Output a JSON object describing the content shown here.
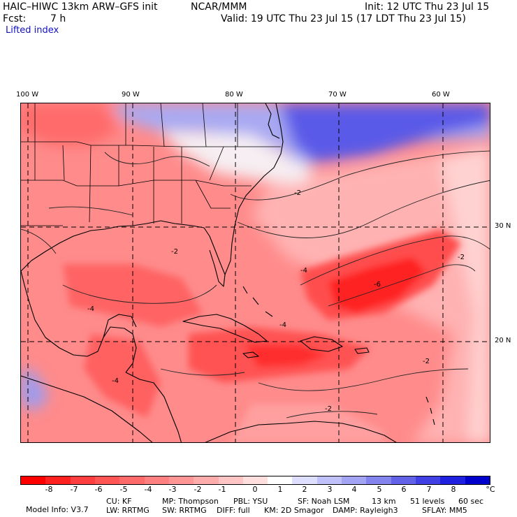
{
  "header": {
    "title_left": "HAIC–HIWC 13km ARW–GFS init",
    "title_center": "NCAR/MMM",
    "fcst_label": "Fcst:",
    "fcst_value": "7 h",
    "init": "Init: 12 UTC Thu 23 Jul 15",
    "valid": "Valid: 19 UTC Thu 23 Jul 15 (17 LDT Thu 23 Jul 15)",
    "field_name": "Lifted index"
  },
  "map": {
    "lon_labels": [
      "100 W",
      "90 W",
      "80 W",
      "70 W",
      "60 W"
    ],
    "lat_labels": [
      "30 N",
      "20 N"
    ],
    "contour_labels": [
      "-2",
      "-2",
      "-4",
      "-4",
      "-4",
      "-6",
      "-2",
      "-2",
      "-4",
      "-2"
    ]
  },
  "colorbar": {
    "colors": [
      "#ff0000",
      "#ff2020",
      "#ff3f3f",
      "#ff5555",
      "#ff6a6a",
      "#ff8080",
      "#ff9696",
      "#ffacac",
      "#ffc4c4",
      "#ffdede",
      "#ffffff",
      "#dedefe",
      "#c0c0fa",
      "#a4a4f4",
      "#8484ee",
      "#6262e8",
      "#4040e4",
      "#2020e0",
      "#0000cc"
    ],
    "ticks": [
      "-8",
      "-7",
      "-6",
      "-5",
      "-4",
      "-3",
      "-2",
      "-1",
      "0",
      "1",
      "2",
      "3",
      "4",
      "5",
      "6",
      "7",
      "8"
    ],
    "unit": "°C"
  },
  "model_info": {
    "line1": [
      "Model Info: V3.7",
      "CU: KF",
      "MP: Thompson",
      "PBL: YSU",
      "SF: Noah LSM",
      "13 km",
      "51 levels",
      "60 sec"
    ],
    "line2": [
      "LW: RRTMG",
      "SW: RRTMG",
      "DIFF: full",
      "KM: 2D Smagor",
      "DAMP: Rayleigh3",
      "SFLAY: MM5"
    ]
  }
}
